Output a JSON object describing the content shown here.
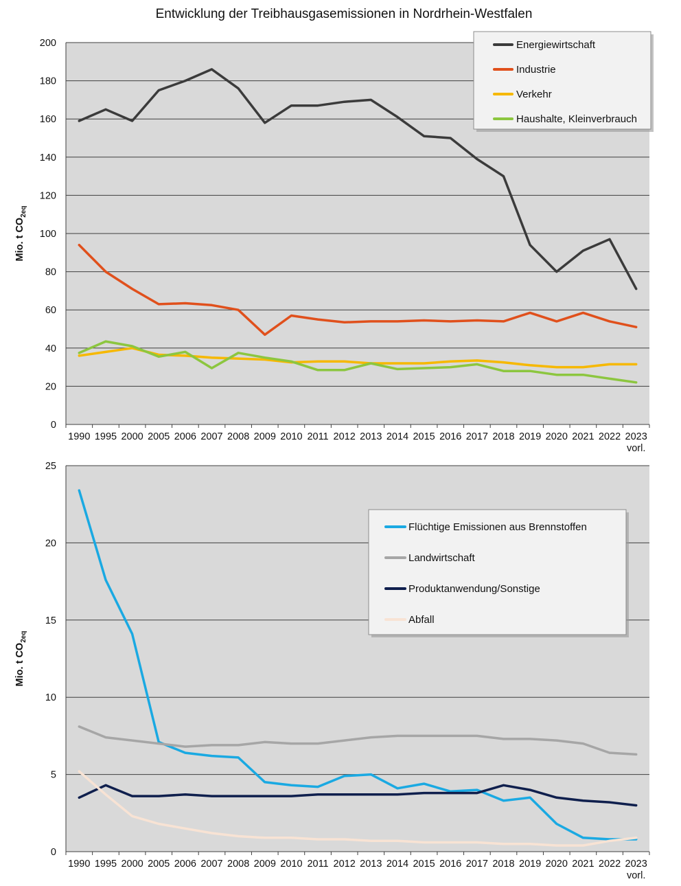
{
  "title": "Entwicklung der Treibhausgasemissionen in Nordrhein-Westfalen",
  "chart_data": [
    {
      "type": "line",
      "ylabel": "Mio. t CO2eq",
      "ylabel_main": "Mio. t CO",
      "ylabel_sub": "2eq",
      "ylim": [
        0,
        200
      ],
      "yticks": [
        0,
        20,
        40,
        60,
        80,
        100,
        120,
        140,
        160,
        180,
        200
      ],
      "grid": true,
      "legend_position": "top-right",
      "categories": [
        "1990",
        "1995",
        "2000",
        "2005",
        "2006",
        "2007",
        "2008",
        "2009",
        "2010",
        "2011",
        "2012",
        "2013",
        "2014",
        "2015",
        "2016",
        "2017",
        "2018",
        "2019",
        "2020",
        "2021",
        "2022",
        "2023"
      ],
      "last_category_note": "vorl.",
      "series": [
        {
          "name": "Energiewirtschaft",
          "color": "#3b3b3b",
          "values": [
            159,
            165,
            159,
            175,
            180,
            186,
            176,
            158,
            167,
            167,
            169,
            170,
            161,
            151,
            150,
            139,
            130,
            94,
            80,
            91,
            97,
            71
          ]
        },
        {
          "name": "Industrie",
          "color": "#e0501c",
          "values": [
            94,
            80,
            71,
            63,
            63.5,
            62.5,
            60,
            47,
            57,
            55,
            53.5,
            54,
            54,
            54.5,
            54,
            54.5,
            54,
            58.5,
            54,
            58.5,
            54,
            51
          ]
        },
        {
          "name": "Verkehr",
          "color": "#f6b800",
          "values": [
            36,
            38,
            40,
            36.5,
            36,
            35,
            34.5,
            34,
            32.5,
            33,
            33,
            32,
            32,
            32,
            33,
            33.5,
            32.5,
            31,
            30,
            30,
            31.5,
            31.5
          ]
        },
        {
          "name": "Haushalte, Kleinverbrauch",
          "color": "#8cc63f",
          "values": [
            37.5,
            43.5,
            41,
            35.5,
            38,
            29.5,
            37.5,
            35,
            33,
            28.5,
            28.5,
            32,
            29,
            29.5,
            30,
            31.5,
            28,
            28,
            26,
            26,
            24,
            22
          ]
        }
      ]
    },
    {
      "type": "line",
      "ylabel": "Mio. t CO2eq",
      "ylabel_main": "Mio. t CO",
      "ylabel_sub": "2eq",
      "ylim": [
        0,
        25
      ],
      "yticks": [
        0,
        5,
        10,
        15,
        20,
        25
      ],
      "grid": true,
      "legend_position": "right",
      "categories": [
        "1990",
        "1995",
        "2000",
        "2005",
        "2006",
        "2007",
        "2008",
        "2009",
        "2010",
        "2011",
        "2012",
        "2013",
        "2014",
        "2015",
        "2016",
        "2017",
        "2018",
        "2019",
        "2020",
        "2021",
        "2022",
        "2023"
      ],
      "last_category_note": "vorl.",
      "series": [
        {
          "name": "Flüchtige Emissionen aus Brennstoffen",
          "color": "#1aa9e2",
          "values": [
            23.4,
            17.6,
            14.1,
            7.1,
            6.4,
            6.2,
            6.1,
            4.5,
            4.3,
            4.2,
            4.9,
            5.0,
            4.1,
            4.4,
            3.9,
            4.0,
            3.3,
            3.5,
            1.8,
            0.9,
            0.8,
            0.8
          ]
        },
        {
          "name": "Landwirtschaft",
          "color": "#a6a6a6",
          "values": [
            8.1,
            7.4,
            7.2,
            7.0,
            6.8,
            6.9,
            6.9,
            7.1,
            7.0,
            7.0,
            7.2,
            7.4,
            7.5,
            7.5,
            7.5,
            7.5,
            7.3,
            7.3,
            7.2,
            7.0,
            6.4,
            6.3
          ]
        },
        {
          "name": "Produktanwendung/Sonstige",
          "color": "#0f1f4d",
          "values": [
            3.5,
            4.3,
            3.6,
            3.6,
            3.7,
            3.6,
            3.6,
            3.6,
            3.6,
            3.7,
            3.7,
            3.7,
            3.7,
            3.8,
            3.8,
            3.8,
            4.3,
            4.0,
            3.5,
            3.3,
            3.2,
            3.0
          ]
        },
        {
          "name": "Abfall",
          "color": "#f8e3d4",
          "values": [
            5.2,
            3.7,
            2.3,
            1.8,
            1.5,
            1.2,
            1.0,
            0.9,
            0.9,
            0.8,
            0.8,
            0.7,
            0.7,
            0.6,
            0.6,
            0.6,
            0.5,
            0.5,
            0.4,
            0.4,
            0.7,
            0.9
          ]
        }
      ]
    }
  ]
}
